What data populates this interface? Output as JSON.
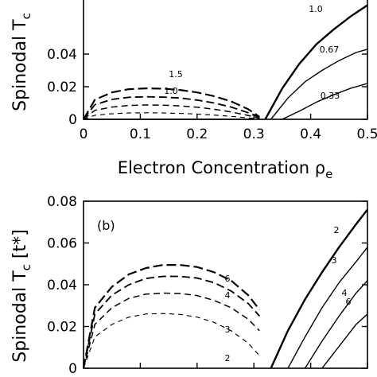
{
  "chart_data": [
    {
      "type": "line",
      "panel": "a",
      "ylabel": "Spinodal T",
      "ylabel_sub": "c",
      "xlabel": "Electron Concentration ρ",
      "xlabel_sub": "e",
      "xlim": [
        0,
        0.5
      ],
      "ylim": [
        0,
        0.06
      ],
      "xticks": [
        0,
        0.1,
        0.2,
        0.3,
        0.4,
        0.5
      ],
      "xtick_labels": [
        "0",
        "0.1",
        "0.2",
        "0.3",
        "0.4",
        "0.5"
      ],
      "yticks": [
        0,
        0.02,
        0.04
      ],
      "ytick_labels": [
        "0",
        "0.02",
        "0.04"
      ],
      "series": [
        {
          "name": "1.5",
          "style": "dashed",
          "x": [
            0.0,
            0.02,
            0.05,
            0.08,
            0.11,
            0.14,
            0.17,
            0.2,
            0.23,
            0.26,
            0.29,
            0.31
          ],
          "y": [
            0.0,
            0.012,
            0.0165,
            0.0185,
            0.019,
            0.0188,
            0.018,
            0.0165,
            0.0142,
            0.011,
            0.0062,
            0.0015
          ]
        },
        {
          "name": "1.0",
          "style": "dashed",
          "x": [
            0.0,
            0.02,
            0.05,
            0.08,
            0.11,
            0.14,
            0.17,
            0.2,
            0.23,
            0.26,
            0.29,
            0.31
          ],
          "y": [
            0.0,
            0.009,
            0.0122,
            0.0135,
            0.0138,
            0.0136,
            0.013,
            0.0118,
            0.01,
            0.0075,
            0.004,
            0.001
          ]
        },
        {
          "style": "dashed",
          "x": [
            0.0,
            0.02,
            0.05,
            0.08,
            0.11,
            0.14,
            0.17,
            0.2,
            0.23,
            0.26,
            0.29,
            0.31
          ],
          "y": [
            0.0,
            0.0055,
            0.0075,
            0.0085,
            0.0088,
            0.0087,
            0.0082,
            0.0074,
            0.0062,
            0.0045,
            0.0024,
            0.0006
          ]
        },
        {
          "style": "dashed",
          "x": [
            0.0,
            0.02,
            0.05,
            0.08,
            0.11,
            0.14,
            0.17,
            0.2,
            0.23,
            0.26,
            0.29,
            0.31
          ],
          "y": [
            0.0,
            0.0025,
            0.0034,
            0.0039,
            0.004,
            0.0039,
            0.0036,
            0.0032,
            0.0026,
            0.0018,
            0.0009,
            0.0002
          ]
        },
        {
          "style": "solid",
          "x": [
            0.0,
            0.3
          ],
          "y": [
            0.0,
            0.0
          ]
        },
        {
          "name": "1.0",
          "style": "solid",
          "x": [
            0.32,
            0.35,
            0.38,
            0.41,
            0.44,
            0.47,
            0.5
          ],
          "y": [
            0.0,
            0.019,
            0.034,
            0.046,
            0.055,
            0.063,
            0.07
          ]
        },
        {
          "name": "0.67",
          "style": "solid",
          "x": [
            0.33,
            0.36,
            0.39,
            0.42,
            0.45,
            0.48,
            0.5
          ],
          "y": [
            0.0,
            0.013,
            0.023,
            0.03,
            0.036,
            0.041,
            0.043
          ]
        },
        {
          "name": "0.33",
          "style": "solid",
          "x": [
            0.35,
            0.38,
            0.41,
            0.44,
            0.47,
            0.5
          ],
          "y": [
            0.0,
            0.005,
            0.0105,
            0.015,
            0.019,
            0.022
          ]
        }
      ],
      "annotations": [
        "1.5",
        "1.0",
        "1.0",
        "0.67",
        "0.33"
      ]
    },
    {
      "type": "line",
      "panel": "b",
      "panel_label": "(b)",
      "ylabel": "Spinodal T",
      "ylabel_sub": "c",
      "ylabel_unit": "[t*]",
      "xlim": [
        0,
        0.5
      ],
      "ylim": [
        0,
        0.08
      ],
      "yticks": [
        0,
        0.02,
        0.04,
        0.06,
        0.08
      ],
      "ytick_labels": [
        "0",
        "0.02",
        "0.04",
        "0.06",
        "0.08"
      ],
      "series": [
        {
          "name": "6",
          "style": "dashed",
          "x": [
            0.0,
            0.02,
            0.05,
            0.08,
            0.11,
            0.14,
            0.17,
            0.2,
            0.23,
            0.26,
            0.29,
            0.31
          ],
          "y": [
            0.0,
            0.029,
            0.039,
            0.045,
            0.048,
            0.0495,
            0.0495,
            0.0485,
            0.046,
            0.042,
            0.035,
            0.028
          ]
        },
        {
          "name": "4",
          "style": "dashed",
          "x": [
            0.0,
            0.02,
            0.05,
            0.08,
            0.11,
            0.14,
            0.17,
            0.2,
            0.23,
            0.26,
            0.29,
            0.31
          ],
          "y": [
            0.0,
            0.026,
            0.035,
            0.04,
            0.043,
            0.044,
            0.044,
            0.0432,
            0.041,
            0.037,
            0.031,
            0.025
          ]
        },
        {
          "name": "3",
          "style": "dashed",
          "x": [
            0.0,
            0.02,
            0.05,
            0.08,
            0.11,
            0.14,
            0.17,
            0.2,
            0.23,
            0.26,
            0.29,
            0.31
          ],
          "y": [
            0.0,
            0.021,
            0.029,
            0.0335,
            0.0355,
            0.036,
            0.0358,
            0.0348,
            0.0325,
            0.029,
            0.0235,
            0.018
          ]
        },
        {
          "name": "2",
          "style": "dashed",
          "x": [
            0.0,
            0.02,
            0.05,
            0.08,
            0.11,
            0.14,
            0.17,
            0.2,
            0.23,
            0.26,
            0.29,
            0.31
          ],
          "y": [
            0.0,
            0.015,
            0.021,
            0.0245,
            0.026,
            0.0262,
            0.0258,
            0.0245,
            0.022,
            0.018,
            0.012,
            0.006
          ]
        },
        {
          "name": "2",
          "style": "solid",
          "x": [
            0.33,
            0.36,
            0.39,
            0.42,
            0.45,
            0.48,
            0.5
          ],
          "y": [
            0.0,
            0.018,
            0.033,
            0.046,
            0.058,
            0.069,
            0.076
          ]
        },
        {
          "name": "3",
          "style": "solid",
          "x": [
            0.36,
            0.39,
            0.42,
            0.45,
            0.48,
            0.5
          ],
          "y": [
            0.0,
            0.015,
            0.029,
            0.041,
            0.051,
            0.058
          ]
        },
        {
          "name": "4",
          "style": "solid",
          "x": [
            0.39,
            0.42,
            0.45,
            0.48,
            0.5
          ],
          "y": [
            0.0,
            0.013,
            0.025,
            0.036,
            0.042
          ]
        },
        {
          "name": "6",
          "style": "solid",
          "x": [
            0.42,
            0.44,
            0.46,
            0.48,
            0.5
          ],
          "y": [
            0.0,
            0.007,
            0.014,
            0.021,
            0.026
          ]
        }
      ],
      "annotations": [
        "6",
        "4",
        "3",
        "2",
        "2",
        "3",
        "4",
        "6"
      ]
    }
  ]
}
